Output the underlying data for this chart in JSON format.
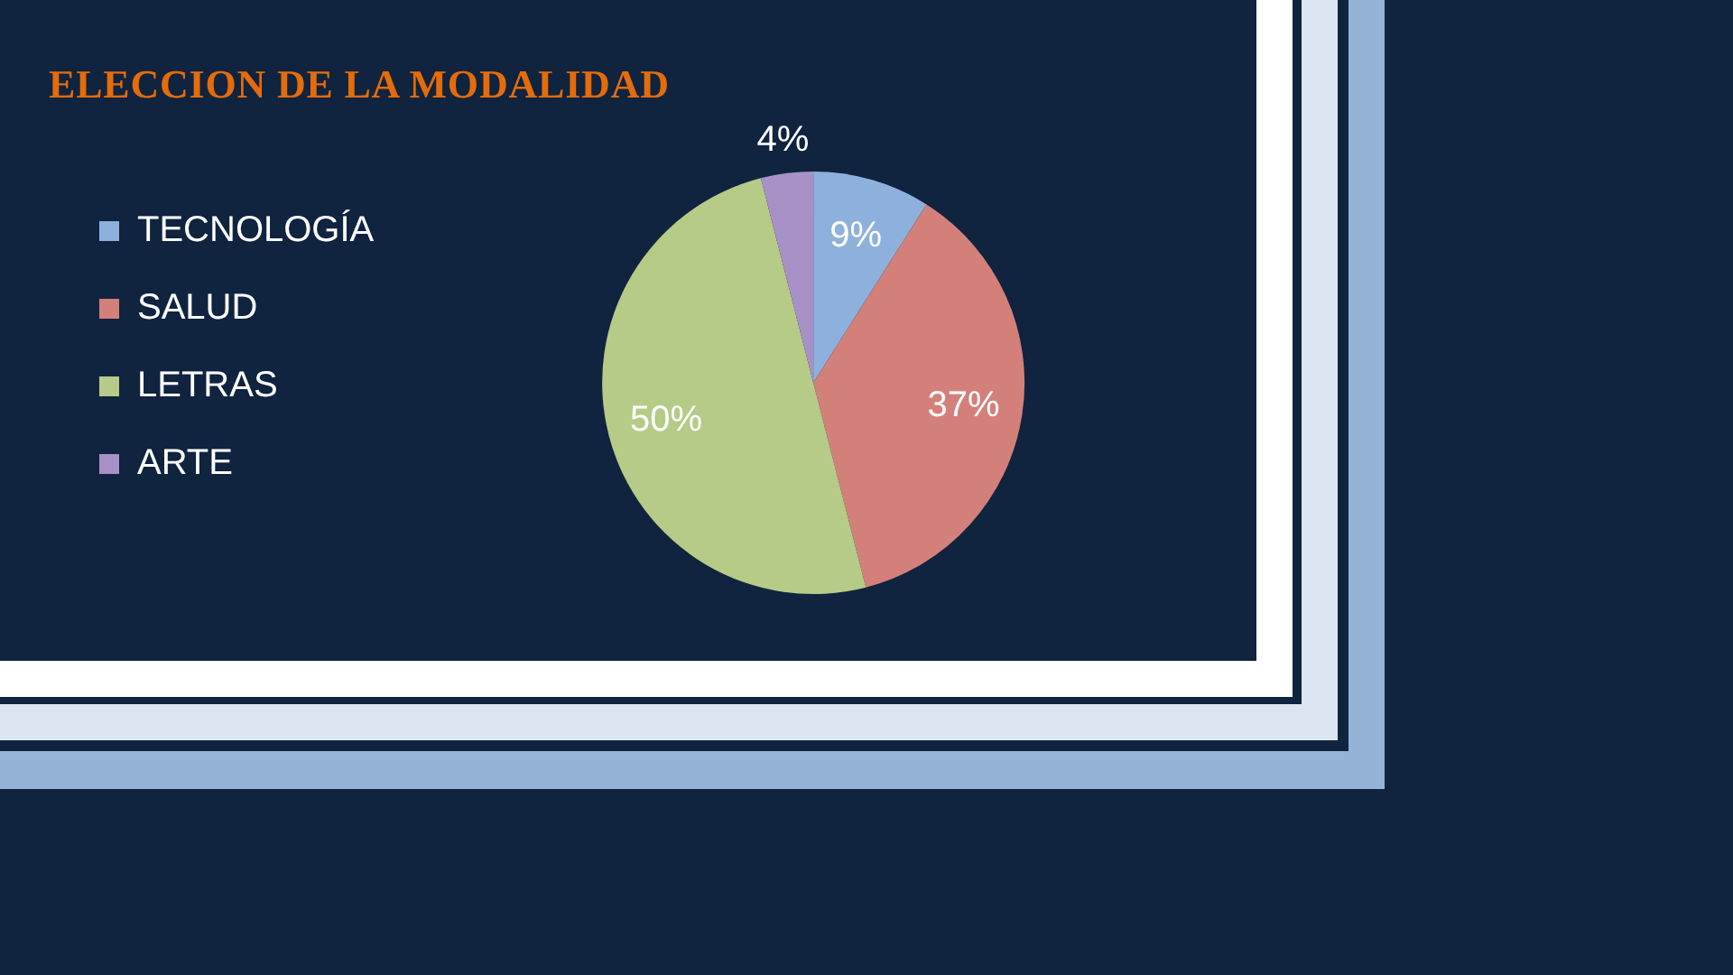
{
  "chart_data": {
    "type": "pie",
    "title": "ELECCION DE LA MODALIDAD",
    "categories": [
      "TECNOLOGÍA",
      "SALUD",
      "LETRAS",
      "ARTE"
    ],
    "values": [
      9,
      37,
      50,
      4
    ],
    "colors": [
      "#8eb0dc",
      "#d4807a",
      "#b5cb87",
      "#a891c6"
    ],
    "value_labels": [
      "9%",
      "37%",
      "50%",
      "4%"
    ],
    "legend": "left"
  }
}
